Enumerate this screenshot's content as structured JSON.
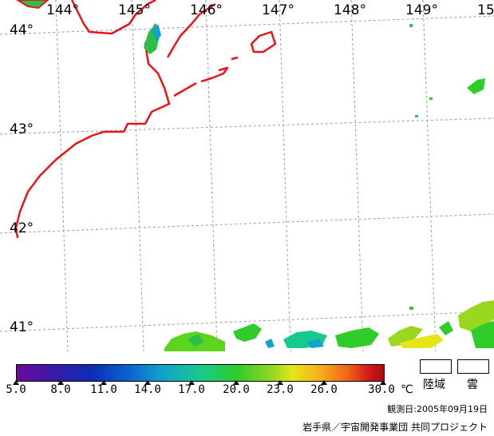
{
  "map": {
    "longitude_labels": [
      "144°",
      "145°",
      "146°",
      "147°",
      "148°",
      "149°",
      "15"
    ],
    "latitude_labels": [
      "44°",
      "43°",
      "42°",
      "41°"
    ],
    "coastline_color": "#e8141a",
    "grid_color": "#9a9a9a"
  },
  "legend": {
    "tick_labels": [
      "5.0",
      "8.0",
      "11.0",
      "14.0",
      "17.0",
      "20.0",
      "23.0",
      "26.0",
      "30.0"
    ],
    "unit": "℃",
    "land_label": "陸域",
    "cloud_label": "雲"
  },
  "footer": {
    "observation": "観測日:2005年09月19日",
    "credit": "岩手県／宇宙開発事業団 共同プロジェクト"
  }
}
